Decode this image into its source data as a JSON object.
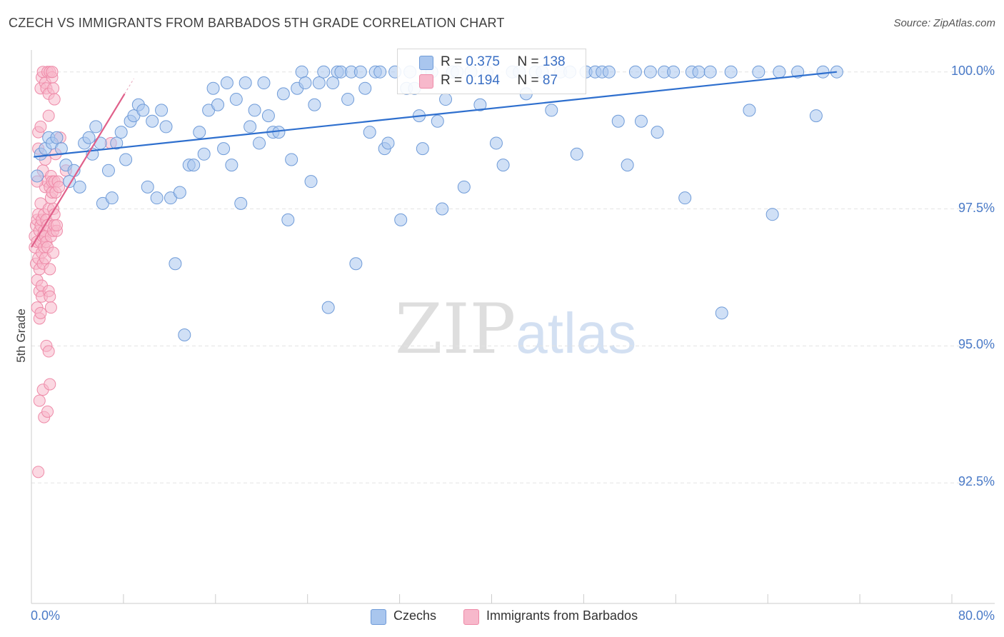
{
  "header": {
    "title": "CZECH VS IMMIGRANTS FROM BARBADOS 5TH GRADE CORRELATION CHART",
    "source": "Source: ZipAtlas.com"
  },
  "watermark": {
    "zip": "ZIP",
    "atlas": "atlas"
  },
  "legend": {
    "czech": {
      "r_label": "R =",
      "r_value": "0.375",
      "n_label": "N =",
      "n_value": "138"
    },
    "barbados": {
      "r_label": "R =",
      "r_value": "0.194",
      "n_label": "N =",
      "n_value": "87"
    }
  },
  "bottom_legend": {
    "czech": "Czechs",
    "barbados": "Immigrants from Barbados"
  },
  "colors": {
    "czech_fill": "#a9c6ee",
    "czech_stroke": "#6f9bd8",
    "czech_line": "#2e6fce",
    "barbados_fill": "#f7b8cb",
    "barbados_stroke": "#ee8aa8",
    "barbados_line": "#e0608a",
    "tick_text": "#4a7ac7",
    "grid": "#e3e3e3"
  },
  "chart_data": {
    "type": "scatter",
    "title": "CZECH VS IMMIGRANTS FROM BARBADOS 5TH GRADE CORRELATION CHART",
    "xlabel": "",
    "ylabel": "5th Grade",
    "xlim": [
      0,
      80
    ],
    "ylim": [
      90.3,
      100.4
    ],
    "x_tick_labels": [
      "0.0%",
      "80.0%"
    ],
    "y_ticks": [
      92.5,
      95.0,
      97.5,
      100.0
    ],
    "y_tick_labels": [
      "92.5%",
      "95.0%",
      "97.5%",
      "100.0%"
    ],
    "series": [
      {
        "name": "Czechs",
        "r": 0.375,
        "n": 138,
        "trend": [
          [
            0.2,
            98.45
          ],
          [
            70.0,
            100.0
          ]
        ],
        "points": [
          [
            0.5,
            98.1
          ],
          [
            0.8,
            98.5
          ],
          [
            1.2,
            98.6
          ],
          [
            1.5,
            98.8
          ],
          [
            1.8,
            98.7
          ],
          [
            2.2,
            98.8
          ],
          [
            2.6,
            98.6
          ],
          [
            3.0,
            98.3
          ],
          [
            3.3,
            98.0
          ],
          [
            3.7,
            98.2
          ],
          [
            4.2,
            97.9
          ],
          [
            4.6,
            98.7
          ],
          [
            5.0,
            98.8
          ],
          [
            5.3,
            98.5
          ],
          [
            5.6,
            99.0
          ],
          [
            6.0,
            98.7
          ],
          [
            6.2,
            97.6
          ],
          [
            6.7,
            98.2
          ],
          [
            7.0,
            97.7
          ],
          [
            7.4,
            98.7
          ],
          [
            7.8,
            98.9
          ],
          [
            8.2,
            98.4
          ],
          [
            8.6,
            99.1
          ],
          [
            8.9,
            99.2
          ],
          [
            9.3,
            99.4
          ],
          [
            9.7,
            99.3
          ],
          [
            10.1,
            97.9
          ],
          [
            10.5,
            99.1
          ],
          [
            10.9,
            97.7
          ],
          [
            11.3,
            99.3
          ],
          [
            11.7,
            99.0
          ],
          [
            12.1,
            97.7
          ],
          [
            12.5,
            96.5
          ],
          [
            12.9,
            97.8
          ],
          [
            13.3,
            95.2
          ],
          [
            13.7,
            98.3
          ],
          [
            14.1,
            98.3
          ],
          [
            14.6,
            98.9
          ],
          [
            15.0,
            98.5
          ],
          [
            15.4,
            99.3
          ],
          [
            15.8,
            99.7
          ],
          [
            16.2,
            99.4
          ],
          [
            16.7,
            98.6
          ],
          [
            17.0,
            99.8
          ],
          [
            17.4,
            98.3
          ],
          [
            17.8,
            99.5
          ],
          [
            18.2,
            97.6
          ],
          [
            18.6,
            99.8
          ],
          [
            19.0,
            99.0
          ],
          [
            19.4,
            99.3
          ],
          [
            19.8,
            98.7
          ],
          [
            20.2,
            99.8
          ],
          [
            20.6,
            99.2
          ],
          [
            21.0,
            98.9
          ],
          [
            21.5,
            98.9
          ],
          [
            21.9,
            99.6
          ],
          [
            22.3,
            97.3
          ],
          [
            22.6,
            98.4
          ],
          [
            23.1,
            99.7
          ],
          [
            23.5,
            100.0
          ],
          [
            23.8,
            99.8
          ],
          [
            24.3,
            98.0
          ],
          [
            24.6,
            99.4
          ],
          [
            25.0,
            99.8
          ],
          [
            25.4,
            100.0
          ],
          [
            25.8,
            95.7
          ],
          [
            26.2,
            99.8
          ],
          [
            26.6,
            100.0
          ],
          [
            26.9,
            100.0
          ],
          [
            27.5,
            99.5
          ],
          [
            27.8,
            100.0
          ],
          [
            28.2,
            96.5
          ],
          [
            28.6,
            100.0
          ],
          [
            29.0,
            99.7
          ],
          [
            29.4,
            98.9
          ],
          [
            29.9,
            100.0
          ],
          [
            30.3,
            100.0
          ],
          [
            30.7,
            98.6
          ],
          [
            31.0,
            98.7
          ],
          [
            31.6,
            100.0
          ],
          [
            32.1,
            97.3
          ],
          [
            32.6,
            99.7
          ],
          [
            32.9,
            100.0
          ],
          [
            33.3,
            99.7
          ],
          [
            33.7,
            99.2
          ],
          [
            34.0,
            98.6
          ],
          [
            34.4,
            100.0
          ],
          [
            34.8,
            100.0
          ],
          [
            35.3,
            99.1
          ],
          [
            35.7,
            97.5
          ],
          [
            36.0,
            99.5
          ],
          [
            36.6,
            100.0
          ],
          [
            37.0,
            100.0
          ],
          [
            37.6,
            97.9
          ],
          [
            38.2,
            100.0
          ],
          [
            39.0,
            99.4
          ],
          [
            39.6,
            100.0
          ],
          [
            40.4,
            98.7
          ],
          [
            41.0,
            98.3
          ],
          [
            41.8,
            100.0
          ],
          [
            42.4,
            100.0
          ],
          [
            43.0,
            99.6
          ],
          [
            43.8,
            100.0
          ],
          [
            44.4,
            100.0
          ],
          [
            45.2,
            99.3
          ],
          [
            46.0,
            100.0
          ],
          [
            46.8,
            100.0
          ],
          [
            47.4,
            98.5
          ],
          [
            48.2,
            100.0
          ],
          [
            49.0,
            100.0
          ],
          [
            49.6,
            100.0
          ],
          [
            50.2,
            100.0
          ],
          [
            51.0,
            99.1
          ],
          [
            51.8,
            98.3
          ],
          [
            52.5,
            100.0
          ],
          [
            53.0,
            99.1
          ],
          [
            53.8,
            100.0
          ],
          [
            54.4,
            98.9
          ],
          [
            55.0,
            100.0
          ],
          [
            55.8,
            100.0
          ],
          [
            56.8,
            97.7
          ],
          [
            57.4,
            100.0
          ],
          [
            58.0,
            100.0
          ],
          [
            59.0,
            100.0
          ],
          [
            60.0,
            95.6
          ],
          [
            60.8,
            100.0
          ],
          [
            62.4,
            99.3
          ],
          [
            63.2,
            100.0
          ],
          [
            64.4,
            97.4
          ],
          [
            65.0,
            100.0
          ],
          [
            66.6,
            100.0
          ],
          [
            68.2,
            99.2
          ],
          [
            68.8,
            100.0
          ],
          [
            70.0,
            100.0
          ]
        ]
      },
      {
        "name": "Immigrants from Barbados",
        "r": 0.194,
        "n": 87,
        "trend": [
          [
            0.0,
            96.8
          ],
          [
            8.1,
            99.6
          ]
        ],
        "points": [
          [
            0.3,
            97.0
          ],
          [
            0.3,
            96.8
          ],
          [
            0.4,
            97.2
          ],
          [
            0.4,
            96.5
          ],
          [
            0.5,
            96.9
          ],
          [
            0.5,
            97.3
          ],
          [
            0.5,
            96.2
          ],
          [
            0.5,
            95.7
          ],
          [
            0.6,
            97.4
          ],
          [
            0.6,
            96.6
          ],
          [
            0.6,
            98.6
          ],
          [
            0.6,
            98.9
          ],
          [
            0.7,
            97.1
          ],
          [
            0.7,
            96.4
          ],
          [
            0.7,
            96.0
          ],
          [
            0.7,
            95.5
          ],
          [
            0.7,
            94.0
          ],
          [
            0.8,
            97.6
          ],
          [
            0.8,
            97.2
          ],
          [
            0.8,
            96.9
          ],
          [
            0.8,
            99.0
          ],
          [
            0.8,
            99.7
          ],
          [
            0.9,
            97.3
          ],
          [
            0.9,
            96.7
          ],
          [
            0.9,
            96.1
          ],
          [
            0.9,
            95.9
          ],
          [
            0.9,
            99.9
          ],
          [
            1.0,
            97.0
          ],
          [
            1.0,
            96.5
          ],
          [
            1.0,
            98.2
          ],
          [
            1.0,
            100.0
          ],
          [
            1.0,
            94.2
          ],
          [
            1.1,
            97.4
          ],
          [
            1.1,
            97.1
          ],
          [
            1.1,
            96.8
          ],
          [
            1.1,
            93.7
          ],
          [
            1.2,
            97.0
          ],
          [
            1.2,
            96.6
          ],
          [
            1.2,
            97.9
          ],
          [
            1.2,
            98.4
          ],
          [
            1.2,
            99.8
          ],
          [
            1.3,
            97.3
          ],
          [
            1.3,
            96.9
          ],
          [
            1.3,
            99.7
          ],
          [
            1.3,
            95.0
          ],
          [
            1.4,
            97.2
          ],
          [
            1.4,
            96.8
          ],
          [
            1.4,
            98.0
          ],
          [
            1.4,
            100.0
          ],
          [
            1.4,
            93.8
          ],
          [
            1.5,
            96.0
          ],
          [
            1.5,
            97.5
          ],
          [
            1.5,
            99.2
          ],
          [
            1.5,
            99.6
          ],
          [
            1.6,
            96.4
          ],
          [
            1.6,
            95.9
          ],
          [
            1.6,
            97.9
          ],
          [
            1.6,
            100.0
          ],
          [
            1.6,
            94.3
          ],
          [
            1.7,
            97.0
          ],
          [
            1.7,
            98.1
          ],
          [
            1.7,
            97.7
          ],
          [
            1.7,
            95.7
          ],
          [
            1.8,
            97.8
          ],
          [
            1.8,
            98.0
          ],
          [
            1.8,
            99.9
          ],
          [
            1.8,
            100.0
          ],
          [
            1.9,
            97.1
          ],
          [
            1.9,
            96.7
          ],
          [
            1.9,
            97.5
          ],
          [
            1.9,
            99.7
          ],
          [
            2.0,
            97.2
          ],
          [
            2.0,
            97.4
          ],
          [
            2.0,
            98.0
          ],
          [
            2.0,
            99.5
          ],
          [
            2.1,
            97.8
          ],
          [
            2.1,
            98.5
          ],
          [
            2.2,
            97.1
          ],
          [
            2.2,
            97.2
          ],
          [
            2.3,
            98.0
          ],
          [
            2.4,
            97.9
          ],
          [
            2.5,
            98.8
          ],
          [
            0.6,
            92.7
          ],
          [
            3.0,
            98.2
          ],
          [
            1.5,
            94.9
          ],
          [
            0.8,
            95.6
          ],
          [
            0.5,
            98.0
          ],
          [
            6.9,
            98.7
          ]
        ]
      }
    ]
  }
}
